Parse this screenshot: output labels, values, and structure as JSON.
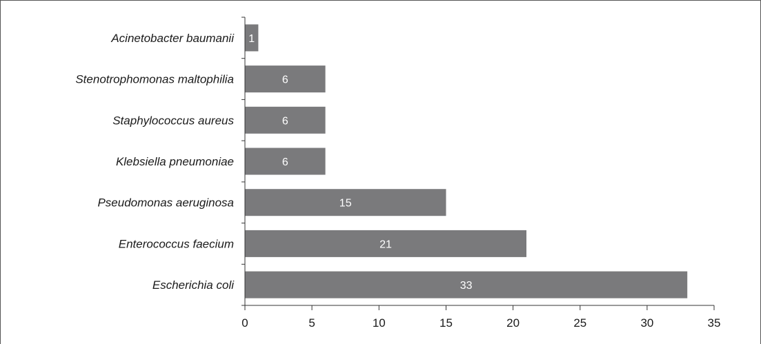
{
  "chart_data": {
    "type": "bar",
    "orientation": "horizontal",
    "categories": [
      "Acinetobacter baumanii",
      "Stenotrophomonas maltophilia",
      "Staphylococcus aureus",
      "Klebsiella pneumoniae",
      "Pseudomonas aeruginosa",
      "Enterococcus faecium",
      "Escherichia coli"
    ],
    "values": [
      1,
      6,
      6,
      6,
      15,
      21,
      33
    ],
    "data_labels": [
      "1",
      "6",
      "6",
      "6",
      "15",
      "21",
      "33"
    ],
    "xticks": [
      "0",
      "5",
      "10",
      "15",
      "20",
      "25",
      "30",
      "35"
    ],
    "xlim": [
      0,
      35
    ],
    "title": "",
    "xlabel": "",
    "ylabel": "",
    "grid": false,
    "legend": "none",
    "colors": {
      "bar": "#7a7a7c",
      "axis": "#333333",
      "frame": "#555555"
    }
  }
}
